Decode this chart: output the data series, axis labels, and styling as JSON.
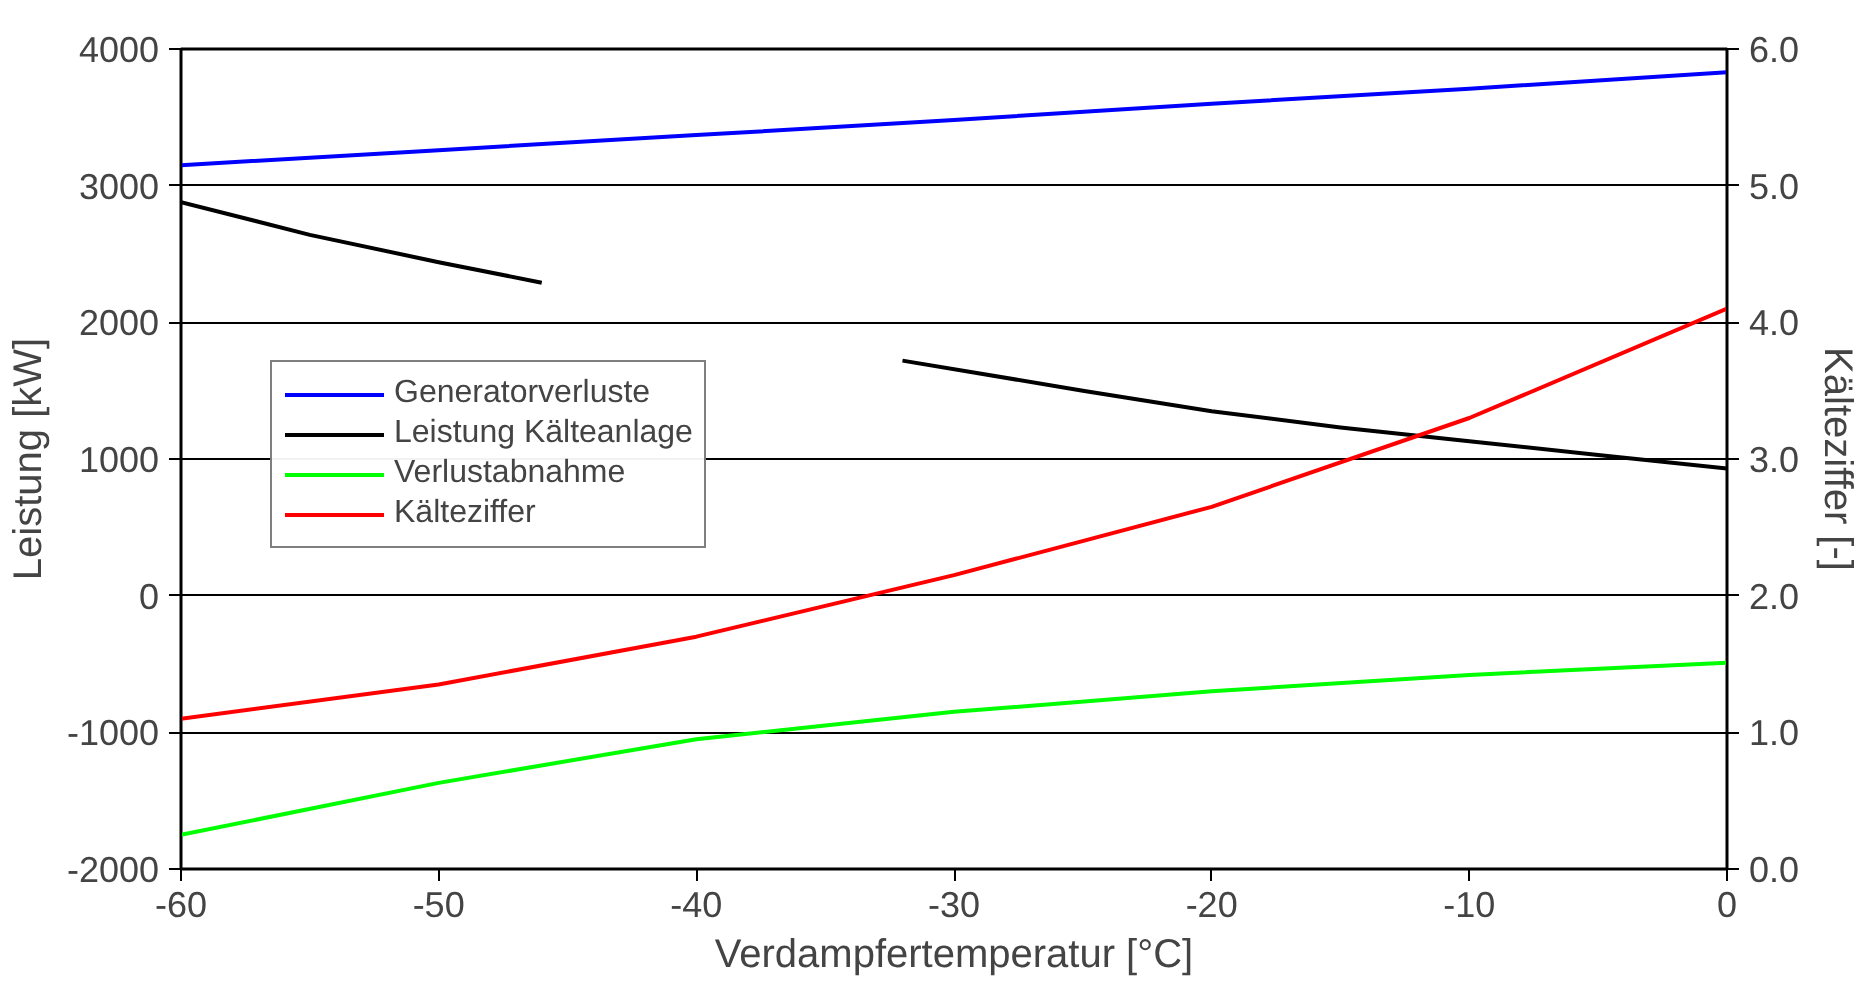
{
  "chart_data": {
    "type": "line",
    "xlabel": "Verdampfertemperatur [°C]",
    "ylabel": "Leistung [kW]",
    "y2label": "Kälteziffer [-]",
    "xlim": [
      -60,
      0
    ],
    "xticks": [
      -60,
      -50,
      -40,
      -30,
      -20,
      -10,
      0
    ],
    "ylim": [
      -2000,
      4000
    ],
    "yticks": [
      -2000,
      -1000,
      0,
      1000,
      2000,
      3000,
      4000
    ],
    "y2lim": [
      0,
      6
    ],
    "y2ticks": [
      {
        "value": 0,
        "label": "0.0"
      },
      {
        "value": 1,
        "label": "1.0"
      },
      {
        "value": 2,
        "label": "2.0"
      },
      {
        "value": 3,
        "label": "3.0"
      },
      {
        "value": 4,
        "label": "4.0"
      },
      {
        "value": 5,
        "label": "5.0"
      },
      {
        "value": 6,
        "label": "6.0"
      }
    ],
    "grid": "y",
    "legend": "left",
    "marker": "none",
    "line_style": "solid",
    "series": [
      {
        "name": "Generatorverluste",
        "color": "#0000ff",
        "x": [
          -60,
          -50,
          -40,
          -30,
          -20,
          -10,
          0
        ],
        "values": [
          3150,
          3260,
          3370,
          3480,
          3600,
          3710,
          3830
        ]
      },
      {
        "name": "Leistung Kälteanlage",
        "color": "#000000",
        "x": [
          -60,
          -55,
          -50,
          -46,
          -40,
          -32,
          -25,
          -20,
          -15,
          -10,
          -5,
          0
        ],
        "values": [
          2880,
          2640,
          2440,
          2290,
          null,
          1720,
          1500,
          1350,
          1230,
          1130,
          1030,
          930
        ]
      },
      {
        "name": "Verlustabnahme",
        "color": "#00ff00",
        "x": [
          -60,
          -50,
          -40,
          -30,
          -20,
          -10,
          0
        ],
        "values": [
          -1750,
          -1370,
          -1050,
          -850,
          -700,
          -580,
          -490
        ]
      },
      {
        "name": "Kälteziffer",
        "color": "#ff0000",
        "axis": "y2",
        "x": [
          -60,
          -50,
          -40,
          -30,
          -20,
          -10,
          0
        ],
        "values": [
          1.1,
          1.35,
          1.7,
          2.15,
          2.65,
          3.3,
          4.1
        ]
      }
    ]
  }
}
